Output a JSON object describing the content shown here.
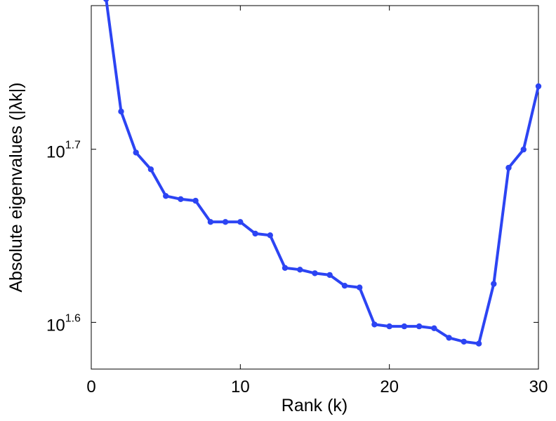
{
  "chart_data": {
    "type": "line",
    "xlabel": "Rank (k)",
    "ylabel": "Absolute eigenvalues (|λk|)",
    "xlim": [
      0,
      30
    ],
    "ylim_log10": [
      1.573,
      1.783
    ],
    "y_scale": "log10",
    "grid": false,
    "x_ticks": [
      {
        "value": 0,
        "label": "0"
      },
      {
        "value": 10,
        "label": "10"
      },
      {
        "value": 20,
        "label": "20"
      },
      {
        "value": 30,
        "label": "30"
      }
    ],
    "y_ticks": [
      {
        "exponent": 1.6,
        "base": "10",
        "sup": "1.6"
      },
      {
        "exponent": 1.7,
        "base": "10",
        "sup": "1.7"
      }
    ],
    "series": [
      {
        "color": "#2c44f3",
        "x": [
          1,
          2,
          3,
          4,
          5,
          6,
          7,
          8,
          9,
          10,
          11,
          12,
          13,
          14,
          15,
          16,
          17,
          18,
          19,
          20,
          21,
          22,
          23,
          24,
          25,
          26,
          27,
          28,
          29,
          30
        ],
        "y": [
          61.2,
          52.7,
          49.9,
          48.8,
          47.1,
          46.9,
          46.8,
          45.5,
          45.5,
          45.5,
          44.8,
          44.7,
          42.8,
          42.7,
          42.5,
          42.4,
          41.8,
          41.7,
          39.7,
          39.6,
          39.6,
          39.6,
          39.5,
          39.0,
          38.8,
          38.7,
          41.9,
          48.9,
          50.1,
          54.5
        ]
      }
    ]
  }
}
